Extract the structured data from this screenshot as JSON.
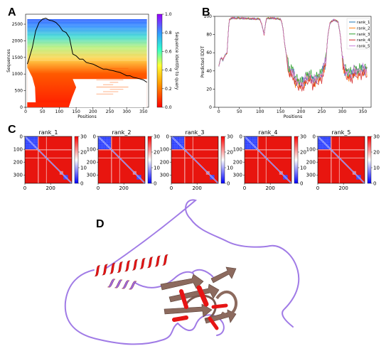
{
  "panel_labels": {
    "a": "A",
    "b": "B",
    "c": "C",
    "d": "D"
  },
  "chart_data": [
    {
      "id": "A",
      "type": "heatmap",
      "title": "",
      "xlabel": "Positions",
      "ylabel": "Sequences",
      "colorbar_label": "Sequence identity to query",
      "xlim": [
        0,
        365
      ],
      "ylim": [
        0,
        2800
      ],
      "xticks": [
        0,
        50,
        100,
        150,
        200,
        250,
        300,
        350
      ],
      "yticks": [
        0,
        500,
        1000,
        1500,
        2000,
        2500
      ],
      "colorbar_ticks": [
        0.0,
        0.2,
        0.4,
        0.6,
        0.8,
        1.0
      ],
      "colorbar_tick_labels": [
        "0.0",
        "0.2",
        "0.4",
        "0.6",
        "0.8",
        "1.0"
      ],
      "colors": [
        "#ff0000",
        "#ff9900",
        "#ffff33",
        "#33ffcc",
        "#3399ff",
        "#9900ff"
      ],
      "coverage_line": {
        "x": [
          5,
          10,
          20,
          30,
          40,
          50,
          60,
          70,
          80,
          90,
          100,
          110,
          120,
          130,
          140,
          150,
          160,
          170,
          180,
          190,
          200,
          210,
          220,
          230,
          240,
          250,
          260,
          270,
          280,
          290,
          300,
          310,
          320,
          330,
          340,
          350,
          360
        ],
        "y": [
          1300,
          1450,
          1800,
          2300,
          2550,
          2650,
          2680,
          2620,
          2600,
          2550,
          2450,
          2300,
          2250,
          2100,
          1600,
          1550,
          1450,
          1450,
          1350,
          1320,
          1300,
          1250,
          1200,
          1150,
          1150,
          1120,
          1100,
          1070,
          1050,
          1000,
          950,
          950,
          900,
          880,
          850,
          820,
          750
        ]
      }
    },
    {
      "id": "B",
      "type": "line",
      "title": "",
      "xlabel": "Positions",
      "ylabel": "Predicted lDDT",
      "xlim": [
        -10,
        370
      ],
      "ylim": [
        0,
        100
      ],
      "xticks": [
        0,
        50,
        100,
        150,
        200,
        250,
        300,
        350
      ],
      "yticks": [
        0,
        20,
        40,
        60,
        80,
        100
      ],
      "legend_position": "right",
      "series": [
        {
          "name": "rank_1",
          "color": "#1f77b4",
          "offset": 0
        },
        {
          "name": "rank_2",
          "color": "#ff7f0e",
          "offset": -2
        },
        {
          "name": "rank_3",
          "color": "#2ca02c",
          "offset": 3
        },
        {
          "name": "rank_4",
          "color": "#d62728",
          "offset": -4
        },
        {
          "name": "rank_5",
          "color": "#c77dd9",
          "offset": 1
        }
      ],
      "base_profile": {
        "x": [
          0,
          5,
          10,
          15,
          20,
          25,
          30,
          50,
          100,
          105,
          110,
          115,
          120,
          130,
          150,
          155,
          160,
          165,
          170,
          175,
          180,
          185,
          190,
          200,
          210,
          220,
          230,
          240,
          250,
          255,
          260,
          265,
          270,
          275,
          280,
          290,
          295,
          300,
          305,
          310,
          320,
          330,
          340,
          350,
          360
        ],
        "y": [
          45,
          55,
          52,
          57,
          60,
          96,
          98,
          98,
          97,
          90,
          80,
          97,
          98,
          98,
          97,
          90,
          70,
          55,
          42,
          38,
          40,
          30,
          28,
          25,
          30,
          35,
          28,
          32,
          35,
          45,
          50,
          80,
          92,
          95,
          96,
          94,
          80,
          55,
          42,
          38,
          35,
          40,
          38,
          42,
          40
        ]
      }
    },
    {
      "id": "C",
      "type": "heatmap",
      "title": "",
      "matrix_size": 365,
      "xticks": [
        0,
        200
      ],
      "yticks": [
        0,
        100,
        200,
        300
      ],
      "colorbar_ticks": [
        0,
        10,
        20,
        30
      ],
      "vmin": 0,
      "vmax": 30,
      "colors": [
        "#0000ff",
        "#ffffff",
        "#ff0000"
      ],
      "domain_blocks": [
        [
          0,
          100
        ],
        [
          100,
          165
        ],
        [
          165,
          300
        ],
        [
          300,
          365
        ]
      ],
      "panels": [
        {
          "title": "rank_1"
        },
        {
          "title": "rank_2"
        },
        {
          "title": "rank_3"
        },
        {
          "title": "rank_4"
        },
        {
          "title": "rank_5"
        }
      ]
    }
  ],
  "structure": {
    "colors": {
      "helix": "#e61414",
      "coil": "#a07be6",
      "sheet": "#8c6a5e"
    }
  }
}
